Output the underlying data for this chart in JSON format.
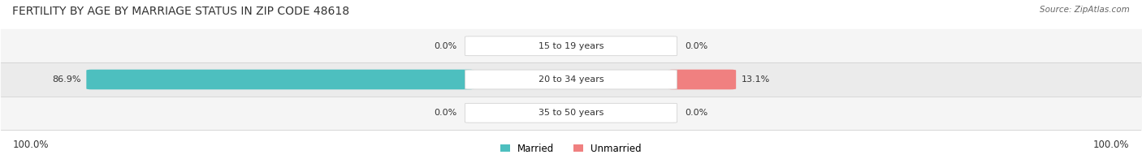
{
  "title": "FERTILITY BY AGE BY MARRIAGE STATUS IN ZIP CODE 48618",
  "source": "Source: ZipAtlas.com",
  "categories": [
    "15 to 19 years",
    "20 to 34 years",
    "35 to 50 years"
  ],
  "married_values": [
    0.0,
    86.9,
    0.0
  ],
  "unmarried_values": [
    0.0,
    13.1,
    0.0
  ],
  "married_color": "#4DBFBF",
  "unmarried_color": "#F08080",
  "left_axis_label": "100.0%",
  "right_axis_label": "100.0%",
  "title_fontsize": 10,
  "label_fontsize": 8.5,
  "figsize": [
    14.06,
    1.96
  ],
  "dpi": 100
}
